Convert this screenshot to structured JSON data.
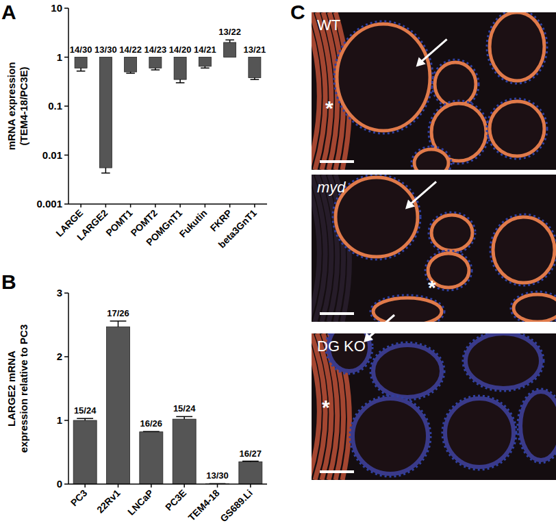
{
  "chart_data": [
    {
      "type": "bar",
      "title": "A",
      "ylabel": "mRNA expression\n(TEM4-18/PC3E)",
      "categories": [
        "LARGE",
        "LARGE2",
        "POMT1",
        "POMT2",
        "POMGnT1",
        "Fukutin",
        "FKRP",
        "beta3GnT1"
      ],
      "values": [
        0.6,
        0.0055,
        0.5,
        0.6,
        0.35,
        0.65,
        2.0,
        0.38
      ],
      "errors": [
        0.08,
        0.0012,
        0.03,
        0.05,
        0.05,
        0.05,
        0.25,
        0.03
      ],
      "annotations": [
        "14/30",
        "13/30",
        "14/22",
        "14/23",
        "14/20",
        "14/21",
        "13/22",
        "13/21"
      ],
      "baseline": 1,
      "log": "y",
      "ylim": [
        0.001,
        10
      ],
      "yticks": [
        0.001,
        0.01,
        0.1,
        1,
        10
      ],
      "color": "#555555"
    },
    {
      "type": "bar",
      "title": "B",
      "ylabel": "LARGE2 mRNA\nexpression relative to PC3",
      "categories": [
        "PC3",
        "22Rv1",
        "LNCaP",
        "PC3E",
        "TEM4-18",
        "GS689.Li"
      ],
      "values": [
        1.0,
        2.47,
        0.82,
        1.02,
        0.0055,
        0.35
      ],
      "errors": [
        0.03,
        0.09,
        0.005,
        0.04,
        0.001,
        0.01
      ],
      "annotations": [
        "15/24",
        "17/26",
        "16/26",
        "15/24",
        "13/30",
        "16/27"
      ],
      "ylim": [
        0,
        3
      ],
      "yticks": [
        0,
        1,
        2,
        3
      ],
      "color": "#555555"
    }
  ],
  "images": {
    "title": "C",
    "panels": [
      {
        "label": "WT",
        "asterisk": "*"
      },
      {
        "label": "myd",
        "italic": true,
        "asterisk": "*"
      },
      {
        "label": "DG KO",
        "asterisk": "*"
      }
    ]
  }
}
